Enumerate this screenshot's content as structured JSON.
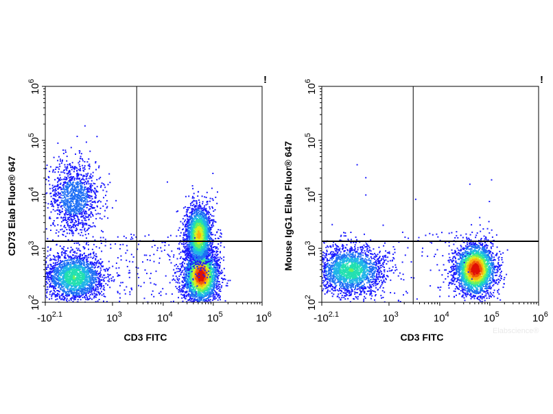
{
  "chart_data": [
    {
      "type": "scatter",
      "plot_kind": "flow cytometry density dot plot",
      "xlabel": "CD3 FITC",
      "ylabel": "CD73  Elab Fluor® 647",
      "xscale": "biexponential",
      "yscale": "log",
      "x_tick_labels": [
        {
          "base": "-10",
          "exp": "2.1"
        },
        {
          "base": "10",
          "exp": "3"
        },
        {
          "base": "10",
          "exp": "4"
        },
        {
          "base": "10",
          "exp": "5"
        },
        {
          "base": "10",
          "exp": "6"
        }
      ],
      "y_tick_labels": [
        {
          "base": "10",
          "exp": "2"
        },
        {
          "base": "10",
          "exp": "3"
        },
        {
          "base": "10",
          "exp": "4"
        },
        {
          "base": "10",
          "exp": "5"
        },
        {
          "base": "10",
          "exp": "6"
        }
      ],
      "gate": {
        "x": 3000,
        "y": 1350
      },
      "corner_mark": "!",
      "populations": [
        {
          "x": 350,
          "y": 300,
          "density": "high",
          "color": "#33c8e0"
        },
        {
          "x": 350,
          "y": 9000,
          "density": "medium",
          "color": "#2f5cf0"
        },
        {
          "x": 55000,
          "y": 320,
          "density": "very high",
          "color": "#e81e0a"
        },
        {
          "x": 50000,
          "y": 1800,
          "density": "high",
          "color": "#e8e020"
        }
      ]
    },
    {
      "type": "scatter",
      "plot_kind": "flow cytometry density dot plot",
      "xlabel": "CD3 FITC",
      "ylabel": "Mouse IgG1 Elab Fluor® 647",
      "xscale": "biexponential",
      "yscale": "log",
      "x_tick_labels": [
        {
          "base": "-10",
          "exp": "2.1"
        },
        {
          "base": "10",
          "exp": "3"
        },
        {
          "base": "10",
          "exp": "4"
        },
        {
          "base": "10",
          "exp": "5"
        },
        {
          "base": "10",
          "exp": "6"
        }
      ],
      "y_tick_labels": [
        {
          "base": "10",
          "exp": "2"
        },
        {
          "base": "10",
          "exp": "3"
        },
        {
          "base": "10",
          "exp": "4"
        },
        {
          "base": "10",
          "exp": "5"
        },
        {
          "base": "10",
          "exp": "6"
        }
      ],
      "gate": {
        "x": 3000,
        "y": 1350
      },
      "corner_mark": "!",
      "populations": [
        {
          "x": 350,
          "y": 400,
          "density": "high",
          "color": "#33c8e0"
        },
        {
          "x": 50000,
          "y": 420,
          "density": "very high",
          "color": "#e81e0a"
        }
      ]
    }
  ],
  "watermark": "Elabscience®"
}
